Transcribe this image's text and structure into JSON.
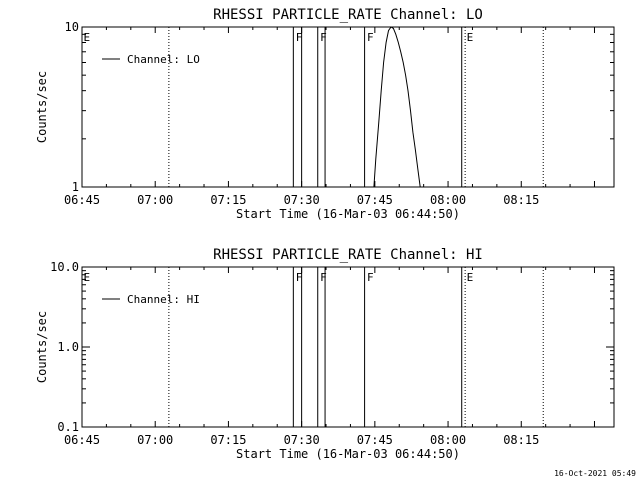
{
  "footer": {
    "timestamp": "16-Oct-2021 05:49"
  },
  "chart_data": [
    {
      "type": "line",
      "title": "RHESSI PARTICLE_RATE Channel: LO",
      "xlabel": "Start Time (16-Mar-03 06:44:50)",
      "ylabel": "Counts/sec",
      "x_unit": "minutes after 06:45",
      "xlim": [
        0,
        109
      ],
      "ylim": [
        1,
        10
      ],
      "yscale": "log",
      "x_ticks": [
        0,
        15,
        30,
        45,
        60,
        75,
        90
      ],
      "x_tick_labels": [
        "06:45",
        "07:00",
        "07:15",
        "07:30",
        "07:45",
        "08:00",
        "08:15"
      ],
      "y_ticks": [
        1,
        10
      ],
      "y_tick_labels": [
        "1",
        "10"
      ],
      "legend": {
        "position": "top-left",
        "entries": [
          "Channel: LO"
        ]
      },
      "dotted_lines_x": [
        17.8,
        78.5,
        94.5
      ],
      "solid_lines_x": [
        43.3,
        45.0,
        48.3,
        49.8,
        57.9,
        77.8
      ],
      "markers": [
        {
          "x": 0.3,
          "label": "E"
        },
        {
          "x": 43.8,
          "label": "F"
        },
        {
          "x": 48.8,
          "label": "F"
        },
        {
          "x": 58.4,
          "label": "F"
        },
        {
          "x": 78.8,
          "label": "E"
        }
      ],
      "series": [
        {
          "name": "Channel: LO",
          "x": [
            59.8,
            60.2,
            60.8,
            61.3,
            61.8,
            62.3,
            62.8,
            63.3,
            63.8,
            64.3,
            64.8,
            65.3,
            65.8,
            66.3,
            66.8,
            67.3,
            67.8,
            68.3,
            68.8,
            69.3
          ],
          "y": [
            1.0,
            1.5,
            2.5,
            4.0,
            6.0,
            8.0,
            9.5,
            10.0,
            9.8,
            9.0,
            8.0,
            7.0,
            6.0,
            5.0,
            4.0,
            3.0,
            2.2,
            1.7,
            1.3,
            1.0
          ]
        }
      ]
    },
    {
      "type": "line",
      "title": "RHESSI PARTICLE_RATE Channel: HI",
      "xlabel": "Start Time (16-Mar-03 06:44:50)",
      "ylabel": "Counts/sec",
      "x_unit": "minutes after 06:45",
      "xlim": [
        0,
        109
      ],
      "ylim": [
        0.1,
        10
      ],
      "yscale": "log",
      "x_ticks": [
        0,
        15,
        30,
        45,
        60,
        75,
        90
      ],
      "x_tick_labels": [
        "06:45",
        "07:00",
        "07:15",
        "07:30",
        "07:45",
        "08:00",
        "08:15"
      ],
      "y_ticks": [
        0.1,
        1,
        10
      ],
      "y_tick_labels": [
        "0.1",
        "1.0",
        "10.0"
      ],
      "legend": {
        "position": "top-left",
        "entries": [
          "Channel: HI"
        ]
      },
      "dotted_lines_x": [
        17.8,
        78.5,
        94.5
      ],
      "solid_lines_x": [
        43.3,
        45.0,
        48.3,
        49.8,
        57.9,
        77.8
      ],
      "markers": [
        {
          "x": 0.3,
          "label": "E"
        },
        {
          "x": 43.8,
          "label": "F"
        },
        {
          "x": 48.8,
          "label": "F"
        },
        {
          "x": 58.4,
          "label": "F"
        },
        {
          "x": 78.8,
          "label": "E"
        }
      ],
      "series": [
        {
          "name": "Channel: HI",
          "x": [],
          "y": []
        }
      ]
    }
  ]
}
